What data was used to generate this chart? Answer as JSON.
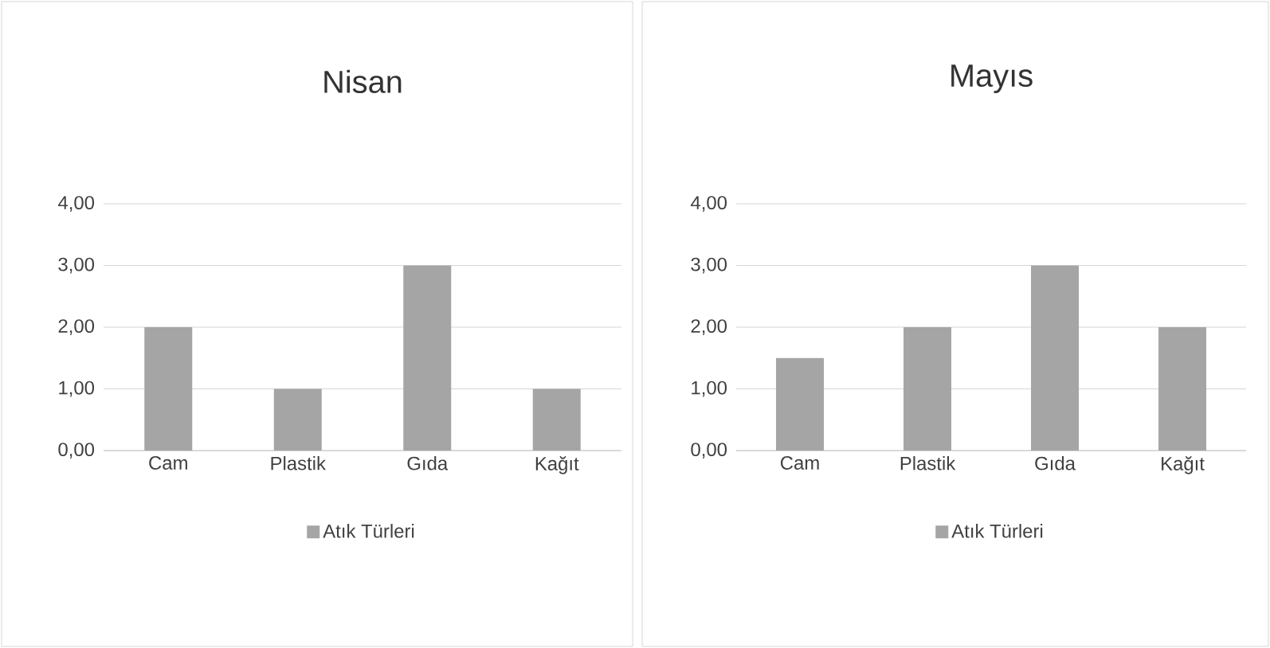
{
  "chart_data": [
    {
      "type": "bar",
      "title": "Nisan",
      "categories": [
        "Cam",
        "Plastik",
        "Gıda",
        "Kağıt"
      ],
      "series": [
        {
          "name": "Atık Türleri",
          "color": "#a5a5a5",
          "values": [
            2,
            1,
            3,
            1
          ]
        }
      ],
      "ylim": [
        0,
        4
      ],
      "yticks": [
        {
          "value": 0,
          "label": "0,00"
        },
        {
          "value": 1,
          "label": "1,00"
        },
        {
          "value": 2,
          "label": "2,00"
        },
        {
          "value": 3,
          "label": "3,00"
        },
        {
          "value": 4,
          "label": "4,00"
        }
      ],
      "grid": "y",
      "legend": "bottom"
    },
    {
      "type": "bar",
      "title": "Mayıs",
      "categories": [
        "Cam",
        "Plastik",
        "Gıda",
        "Kağıt"
      ],
      "series": [
        {
          "name": "Atık Türleri",
          "color": "#a5a5a5",
          "values": [
            1.5,
            2,
            3,
            2
          ]
        }
      ],
      "ylim": [
        0,
        4
      ],
      "yticks": [
        {
          "value": 0,
          "label": "0,00"
        },
        {
          "value": 1,
          "label": "1,00"
        },
        {
          "value": 2,
          "label": "2,00"
        },
        {
          "value": 3,
          "label": "3,00"
        },
        {
          "value": 4,
          "label": "4,00"
        }
      ],
      "grid": "y",
      "legend": "bottom"
    }
  ]
}
